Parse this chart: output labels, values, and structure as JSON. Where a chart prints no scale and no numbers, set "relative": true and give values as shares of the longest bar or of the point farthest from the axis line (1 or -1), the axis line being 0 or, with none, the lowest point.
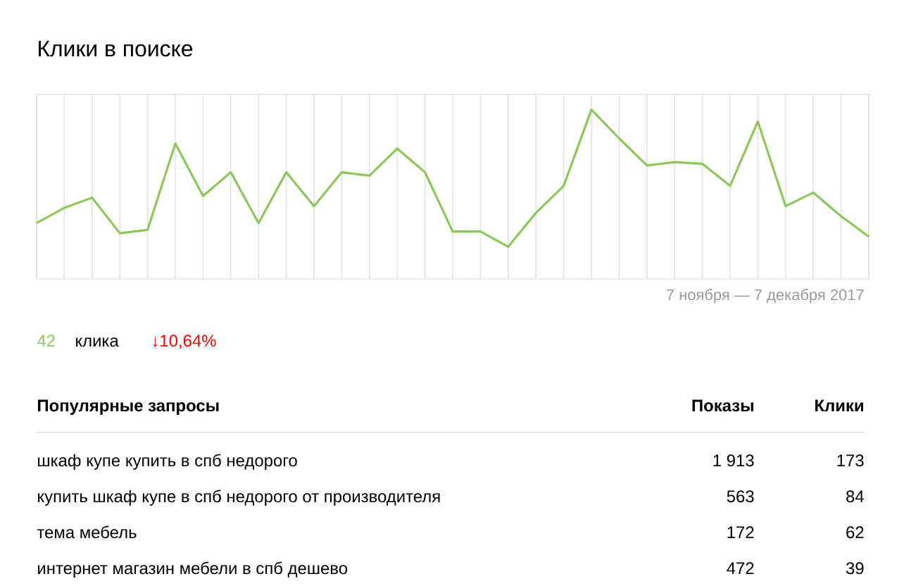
{
  "chart_data": {
    "type": "line",
    "title": "Клики в поиске",
    "relative": true,
    "grid": "x",
    "marker": "none",
    "line_style": "solid",
    "categories": [
      null,
      null,
      null,
      null,
      null,
      null,
      null,
      null,
      null,
      null,
      null,
      null,
      null,
      null,
      null,
      null,
      null,
      null,
      null,
      null,
      null,
      null,
      null,
      null,
      null,
      null,
      null,
      null,
      null,
      null,
      null
    ],
    "series": [
      {
        "color": "#8dc65a",
        "values": [
          0.33,
          0.42,
          0.48,
          0.27,
          0.29,
          0.8,
          0.49,
          0.63,
          0.33,
          0.63,
          0.43,
          0.63,
          0.61,
          0.77,
          0.63,
          0.28,
          0.28,
          0.19,
          0.39,
          0.55,
          1,
          0.83,
          0.67,
          0.69,
          0.68,
          0.55,
          0.93,
          0.43,
          0.51,
          0.37,
          0.25
        ]
      }
    ],
    "annotations": [
      "7 ноября — 7 декабря 2017",
      "42",
      "клика",
      "↓10,64%",
      "Популярные запросы",
      "Показы",
      "Клики",
      "шкаф купе купить в спб недорого",
      "1 913",
      "173",
      "купить шкаф купе в спб недорого от производителя",
      "563",
      "84",
      "тема мебель",
      "172",
      "62",
      "интернет магазин мебели в спб дешево",
      "472",
      "39"
    ]
  }
}
